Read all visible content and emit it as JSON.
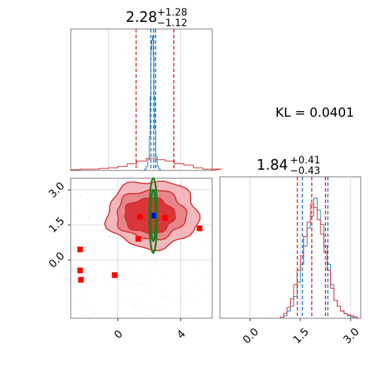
{
  "chart_data": [
    {
      "type": "histogram",
      "panel": "top-left",
      "parameter_index": 0,
      "title": {
        "main": "2.28",
        "sup": "+1.28",
        "sub": "−1.12"
      },
      "xlim": [
        -3,
        6
      ],
      "grid": true,
      "series": [
        {
          "color": "#1f77b4",
          "bins_x": [
            1.6,
            1.7,
            1.8,
            1.9,
            2.0,
            2.05,
            2.1,
            2.15,
            2.2,
            2.25,
            2.3,
            2.35,
            2.4,
            2.5,
            2.6,
            2.7
          ],
          "heights": [
            0,
            0.01,
            0.03,
            0.08,
            0.25,
            0.55,
            0.9,
            0.97,
            1.0,
            0.85,
            0.55,
            0.3,
            0.1,
            0.03,
            0.01,
            0
          ]
        },
        {
          "color": "#d62728",
          "bins_x": [
            -3,
            -2.4,
            -1.8,
            -1.2,
            -0.6,
            0,
            0.6,
            1.2,
            1.8,
            2.4,
            3.0,
            3.6,
            4.2,
            4.8,
            5.4,
            6.0
          ],
          "heights": [
            0.005,
            0.01,
            0.01,
            0.015,
            0.02,
            0.03,
            0.05,
            0.07,
            0.09,
            0.08,
            0.07,
            0.05,
            0.04,
            0.02,
            0.01,
            0.01
          ]
        }
      ],
      "vlines": [
        {
          "x": 1.16,
          "color": "#d62728"
        },
        {
          "x": 3.56,
          "color": "#d62728"
        },
        {
          "x": 2.1,
          "color": "#1f77b4"
        },
        {
          "x": 2.28,
          "color": "#1f77b4"
        },
        {
          "x": 2.4,
          "color": "#1f77b4"
        }
      ]
    },
    {
      "type": "contour",
      "panel": "bottom-left",
      "xlim": [
        -3,
        6
      ],
      "ylim": [
        -2.5,
        3.5
      ],
      "xticks": [
        0,
        4
      ],
      "xtick_labels": [
        "0",
        "4"
      ],
      "yticks": [
        3.0,
        1.5,
        0.0
      ],
      "ytick_labels": [
        "3.0",
        "1.5",
        "0.0"
      ],
      "grid": true,
      "contours_red": [
        {
          "level": "outer",
          "center": [
            2.2,
            1.95
          ],
          "rx": 2.9,
          "ry": 1.45,
          "fill": "#f2b8bb",
          "stroke": "#d62728"
        },
        {
          "level": "middle",
          "center": [
            2.1,
            1.95
          ],
          "rx": 2.2,
          "ry": 1.05,
          "fill": "#e6868b",
          "stroke": "#d62728"
        },
        {
          "level": "inner",
          "center": [
            2.0,
            1.9
          ],
          "rx": 1.6,
          "ry": 0.75,
          "fill": "#d8363c",
          "stroke": "#d62728"
        }
      ],
      "contours_green": [
        {
          "center": [
            2.25,
            1.9
          ],
          "rx": 0.25,
          "ry": 1.6
        },
        {
          "center": [
            2.25,
            1.9
          ],
          "rx": 0.15,
          "ry": 1.1
        }
      ],
      "points_red": [
        {
          "x": 1.4,
          "y": 1.85
        },
        {
          "x": 3.0,
          "y": 1.8
        },
        {
          "x": 1.3,
          "y": 0.9
        },
        {
          "x": 5.2,
          "y": 1.35
        },
        {
          "x": -2.4,
          "y": 0.45
        },
        {
          "x": -2.4,
          "y": -0.45
        },
        {
          "x": -2.35,
          "y": -0.85
        },
        {
          "x": -0.2,
          "y": -0.65
        }
      ],
      "point_blue": {
        "x": 2.28,
        "y": 1.9
      }
    },
    {
      "type": "histogram",
      "panel": "bottom-right",
      "parameter_index": 1,
      "title": {
        "main": "1.84",
        "sup": "+0.41",
        "sub": "−0.43"
      },
      "xlim": [
        -0.9,
        3.3
      ],
      "xticks": [
        0.0,
        1.5,
        3.0
      ],
      "xtick_labels": [
        "0.0",
        "1.5",
        "3.0"
      ],
      "grid": true,
      "series": [
        {
          "color": "#1f77b4",
          "bins_x": [
            1.0,
            1.1,
            1.2,
            1.3,
            1.4,
            1.5,
            1.6,
            1.7,
            1.8,
            1.9,
            2.0,
            2.1,
            2.2,
            2.3,
            2.4,
            2.5,
            2.6,
            2.7,
            2.8,
            2.9,
            3.0,
            3.1,
            3.2
          ],
          "heights": [
            0.02,
            0.06,
            0.1,
            0.18,
            0.3,
            0.45,
            0.6,
            0.75,
            0.85,
            1.0,
            0.9,
            0.78,
            0.6,
            0.45,
            0.28,
            0.15,
            0.1,
            0.06,
            0.04,
            0.02,
            0.01,
            0.01,
            0
          ]
        },
        {
          "color": "#d62728",
          "bins_x": [
            0.9,
            1.0,
            1.1,
            1.2,
            1.3,
            1.4,
            1.5,
            1.6,
            1.7,
            1.8,
            1.9,
            2.0,
            2.1,
            2.2,
            2.3,
            2.4,
            2.5,
            2.6,
            2.7,
            2.8,
            2.9,
            3.0,
            3.1,
            3.2
          ],
          "heights": [
            0.01,
            0.04,
            0.09,
            0.16,
            0.28,
            0.4,
            0.52,
            0.68,
            0.8,
            0.95,
            0.92,
            0.82,
            0.7,
            0.55,
            0.4,
            0.25,
            0.15,
            0.1,
            0.06,
            0.04,
            0.03,
            0.02,
            0.01,
            0
          ]
        }
      ],
      "vlines": [
        {
          "x": 1.41,
          "color": "#d62728"
        },
        {
          "x": 2.25,
          "color": "#d62728"
        },
        {
          "x": 1.56,
          "color": "#1f77b4"
        },
        {
          "x": 2.32,
          "color": "#1f77b4"
        },
        {
          "x": 1.84,
          "color": "#d62728"
        }
      ]
    }
  ],
  "annotation": {
    "kl_text": "KL = 0.0401"
  }
}
